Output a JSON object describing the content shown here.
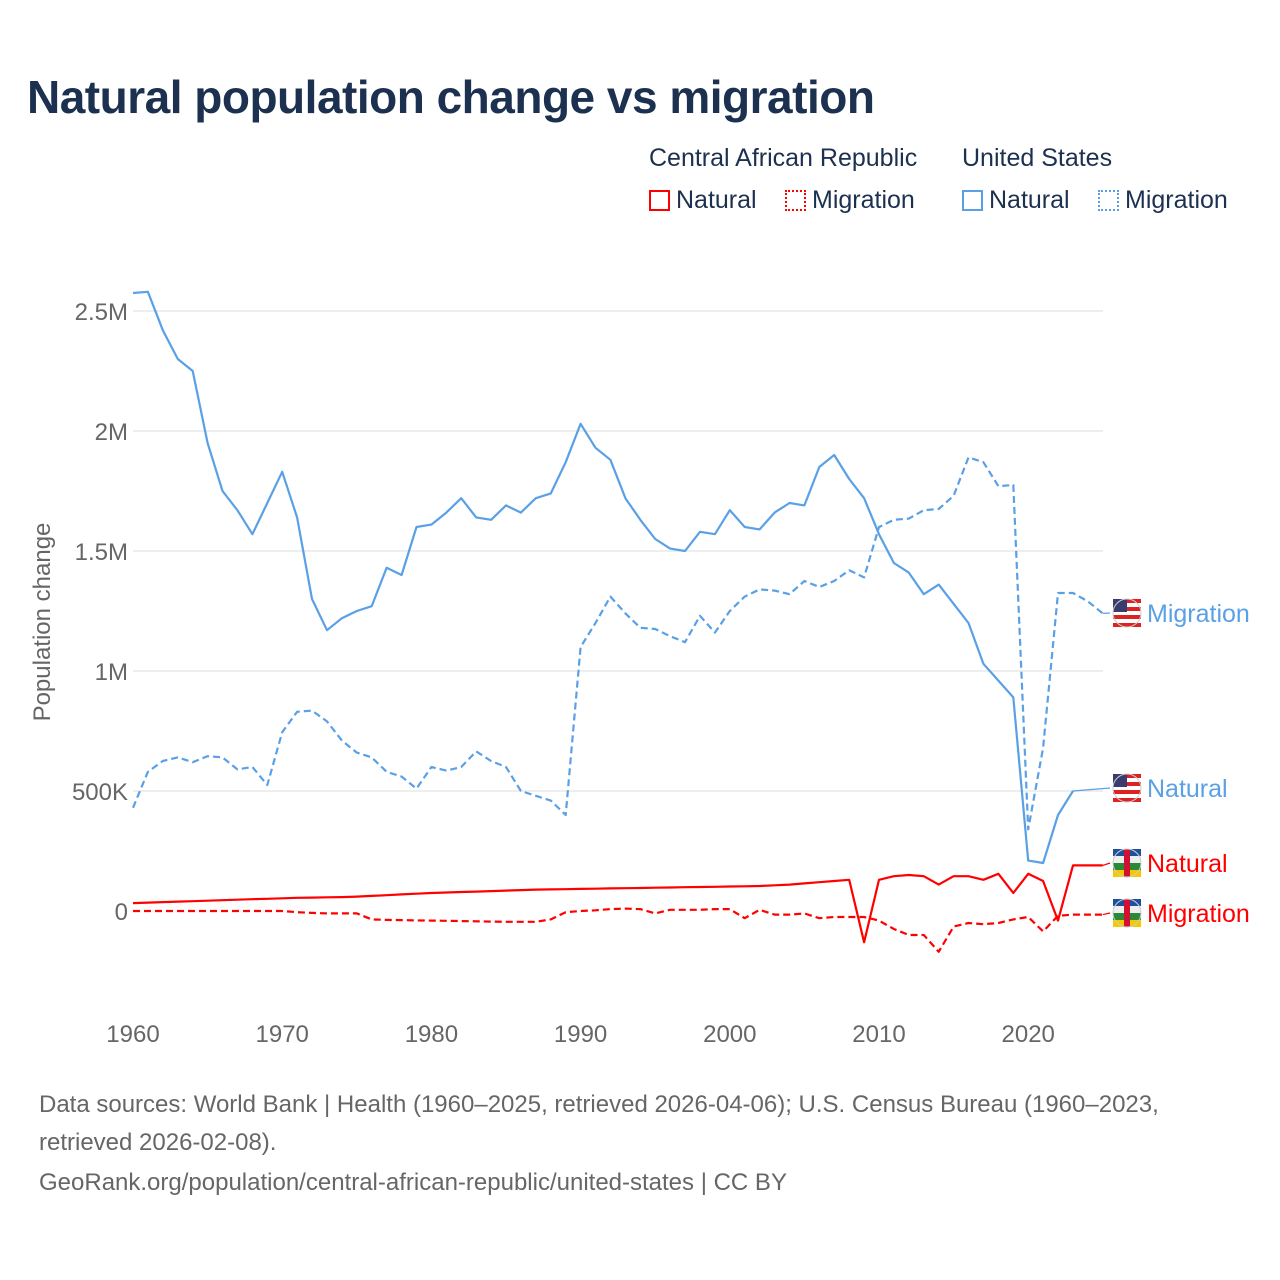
{
  "title": "Natural population change vs migration",
  "legend": {
    "groups": [
      {
        "name": "Central African Republic",
        "color": "#ff0000",
        "items": [
          "Natural",
          "Migration"
        ]
      },
      {
        "name": "United States",
        "color": "#5aa0e6",
        "items": [
          "Natural",
          "Migration"
        ]
      }
    ]
  },
  "source_line1": "Data sources: World Bank | Health (1960–2025, retrieved 2026-04-06); U.S. Census Bureau (1960–2023,",
  "source_line2": "retrieved 2026-02-08).",
  "source_line3": "GeoRank.org/population/central-african-republic/united-states | CC BY",
  "chart_data": {
    "type": "line",
    "ylabel": "Population change",
    "xlim": [
      1960,
      2025
    ],
    "ylim": [
      -300000,
      2650000
    ],
    "xticks": [
      1960,
      1970,
      1980,
      1990,
      2000,
      2010,
      2020
    ],
    "yticks": [
      {
        "v": 0,
        "label": "0"
      },
      {
        "v": 500000,
        "label": "500K"
      },
      {
        "v": 1000000,
        "label": "1M"
      },
      {
        "v": 1500000,
        "label": "1.5M"
      },
      {
        "v": 2000000,
        "label": "2M"
      },
      {
        "v": 2500000,
        "label": "2.5M"
      }
    ],
    "x_start": 1960,
    "series": [
      {
        "name": "United States Natural",
        "label": "Natural",
        "color": "#5aa0e6",
        "dash": false,
        "flag": "us-flag",
        "values": [
          2575000,
          2580000,
          2420000,
          2300000,
          2250000,
          1950000,
          1750000,
          1670000,
          1570000,
          1700000,
          1830000,
          1640000,
          1300000,
          1170000,
          1220000,
          1250000,
          1270000,
          1430000,
          1400000,
          1600000,
          1610000,
          1660000,
          1720000,
          1640000,
          1630000,
          1690000,
          1660000,
          1720000,
          1740000,
          1870000,
          2030000,
          1930000,
          1880000,
          1720000,
          1630000,
          1550000,
          1510000,
          1500000,
          1580000,
          1570000,
          1670000,
          1600000,
          1590000,
          1660000,
          1700000,
          1690000,
          1850000,
          1900000,
          1800000,
          1720000,
          1570000,
          1450000,
          1410000,
          1320000,
          1360000,
          1280000,
          1200000,
          1030000,
          960000,
          890000,
          210000,
          200000,
          400000,
          500000
        ]
      },
      {
        "name": "United States Migration",
        "label": "Migration",
        "color": "#5aa0e6",
        "dash": true,
        "flag": "us-flag",
        "values": [
          430000,
          580000,
          625000,
          640000,
          620000,
          645000,
          640000,
          590000,
          600000,
          525000,
          745000,
          830000,
          835000,
          790000,
          710000,
          660000,
          640000,
          580000,
          560000,
          510000,
          600000,
          585000,
          600000,
          665000,
          625000,
          600000,
          500000,
          480000,
          460000,
          400000,
          1100000,
          1200000,
          1310000,
          1240000,
          1180000,
          1175000,
          1145000,
          1120000,
          1230000,
          1160000,
          1250000,
          1310000,
          1340000,
          1335000,
          1320000,
          1375000,
          1350000,
          1375000,
          1420000,
          1390000,
          1600000,
          1630000,
          1635000,
          1670000,
          1675000,
          1730000,
          1890000,
          1870000,
          1770000,
          1775000,
          340000,
          680000,
          1325000,
          1325000,
          1290000,
          1240000
        ]
      },
      {
        "name": "Central African Republic Natural",
        "label": "Natural",
        "color": "#ff0000",
        "dash": false,
        "flag": "caf-flag",
        "values": [
          33000,
          35000,
          37000,
          39000,
          41000,
          43000,
          45000,
          47000,
          49000,
          51000,
          53000,
          55000,
          56000,
          57000,
          58000,
          60000,
          63000,
          66000,
          69000,
          72000,
          75000,
          77000,
          79000,
          81000,
          83000,
          85000,
          87000,
          89000,
          90000,
          91000,
          92000,
          93000,
          94000,
          95000,
          96000,
          97000,
          98000,
          99000,
          100000,
          101000,
          102000,
          103000,
          104000,
          107000,
          110000,
          115000,
          120000,
          125000,
          130000,
          -130000,
          130000,
          145000,
          150000,
          145000,
          110000,
          145000,
          145000,
          130000,
          155000,
          75000,
          155000,
          125000,
          -40000,
          190000,
          190000,
          190000
        ]
      },
      {
        "name": "Central African Republic Migration",
        "label": "Migration",
        "color": "#ff0000",
        "dash": true,
        "flag": "caf-flag",
        "values": [
          0,
          0,
          0,
          0,
          0,
          0,
          0,
          0,
          0,
          0,
          0,
          -5000,
          -8000,
          -10000,
          -10000,
          -10000,
          -35000,
          -37000,
          -38000,
          -39000,
          -40000,
          -41000,
          -42000,
          -43000,
          -44000,
          -45000,
          -45000,
          -45000,
          -35000,
          -5000,
          0,
          3000,
          8000,
          10000,
          8000,
          -10000,
          5000,
          5000,
          5000,
          8000,
          8000,
          -30000,
          5000,
          -15000,
          -15000,
          -10000,
          -30000,
          -25000,
          -25000,
          -25000,
          -40000,
          -75000,
          -100000,
          -100000,
          -170000,
          -65000,
          -50000,
          -55000,
          -50000,
          -35000,
          -25000,
          -85000,
          -20000,
          -15000,
          -15000,
          -15000
        ]
      }
    ]
  }
}
